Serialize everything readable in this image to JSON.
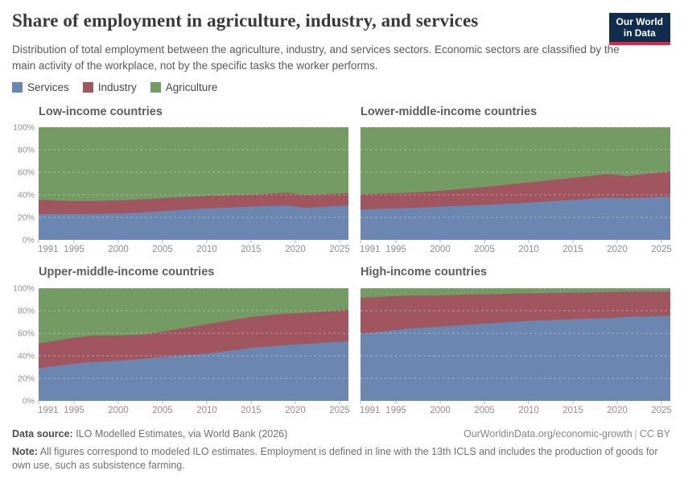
{
  "header": {
    "title": "Share of employment in agriculture, industry, and services",
    "subtitle": "Distribution of total employment between the agriculture, industry, and services sectors. Economic sectors are classified by the main activity of the workplace, not by the specific tasks the worker performs.",
    "logo": {
      "line1": "Our World",
      "line2": "in Data",
      "bg_color": "#102d50",
      "accent_color": "#dc2540"
    }
  },
  "legend": {
    "items": [
      {
        "label": "Services",
        "color": "#6c86b2"
      },
      {
        "label": "Industry",
        "color": "#a0555f"
      },
      {
        "label": "Agriculture",
        "color": "#739b63"
      }
    ]
  },
  "axis": {
    "x_min": 1991,
    "x_max": 2026,
    "x_ticks": [
      1991,
      1995,
      2000,
      2005,
      2010,
      2015,
      2020,
      2025
    ],
    "y_ticks": [
      0,
      20,
      40,
      60,
      80,
      100
    ],
    "y_suffix": "%",
    "grid": "dashed",
    "ylim": [
      0,
      100
    ]
  },
  "chart_data": [
    {
      "type": "area",
      "stacked": true,
      "title": "Low-income countries",
      "show_y_axis": true,
      "ylim": [
        0,
        100
      ],
      "x": [
        1991,
        1995,
        1997,
        2000,
        2003,
        2005,
        2010,
        2015,
        2019,
        2021,
        2026
      ],
      "series": [
        {
          "name": "Services",
          "color": "#6c86b2",
          "values": [
            23,
            23,
            23,
            23.5,
            24.5,
            25.5,
            28,
            29.5,
            30.5,
            28.5,
            30.5
          ]
        },
        {
          "name": "Industry",
          "color": "#a0555f",
          "values": [
            12.5,
            11.5,
            11.5,
            11.5,
            11.5,
            11.5,
            11,
            10.5,
            11.5,
            11.5,
            11
          ]
        },
        {
          "name": "Agriculture",
          "color": "#739b63",
          "values": [
            64.5,
            65.5,
            65.5,
            65,
            64,
            63,
            61,
            60,
            58,
            60,
            58.5
          ]
        }
      ]
    },
    {
      "type": "area",
      "stacked": true,
      "title": "Lower-middle-income countries",
      "show_y_axis": false,
      "ylim": [
        0,
        100
      ],
      "x": [
        1991,
        1995,
        1997,
        2000,
        2003,
        2005,
        2010,
        2015,
        2019,
        2021,
        2026
      ],
      "series": [
        {
          "name": "Services",
          "color": "#6c86b2",
          "values": [
            27,
            28,
            28.5,
            29.5,
            30.5,
            31,
            33,
            35.5,
            37.5,
            37,
            38.5
          ]
        },
        {
          "name": "Industry",
          "color": "#a0555f",
          "values": [
            13.5,
            13.5,
            13.5,
            14,
            15,
            16,
            18,
            19.5,
            21,
            19.5,
            22.5
          ]
        },
        {
          "name": "Agriculture",
          "color": "#739b63",
          "values": [
            59.5,
            58.5,
            58,
            56.5,
            54.5,
            53,
            49,
            45,
            41.5,
            43.5,
            39
          ]
        }
      ]
    },
    {
      "type": "area",
      "stacked": true,
      "title": "Upper-middle-income countries",
      "show_y_axis": true,
      "ylim": [
        0,
        100
      ],
      "x": [
        1991,
        1995,
        1997,
        2000,
        2003,
        2005,
        2010,
        2015,
        2019,
        2021,
        2026
      ],
      "series": [
        {
          "name": "Services",
          "color": "#6c86b2",
          "values": [
            29,
            33,
            34.5,
            35.5,
            37.5,
            39,
            42,
            47,
            49.5,
            50.5,
            53
          ]
        },
        {
          "name": "Industry",
          "color": "#a0555f",
          "values": [
            22,
            23,
            23.5,
            22.5,
            21.5,
            22.5,
            26,
            27.5,
            28,
            27.5,
            28
          ]
        },
        {
          "name": "Agriculture",
          "color": "#739b63",
          "values": [
            49,
            44,
            42,
            42,
            41,
            38.5,
            32,
            25.5,
            22.5,
            22,
            19
          ]
        }
      ]
    },
    {
      "type": "area",
      "stacked": true,
      "title": "High-income countries",
      "show_y_axis": false,
      "ylim": [
        0,
        100
      ],
      "x": [
        1991,
        1995,
        1997,
        2000,
        2003,
        2005,
        2010,
        2015,
        2019,
        2021,
        2026
      ],
      "series": [
        {
          "name": "Services",
          "color": "#6c86b2",
          "values": [
            59.5,
            63,
            64.5,
            66,
            67.5,
            68.5,
            71,
            72.5,
            73.5,
            74.5,
            75.5
          ]
        },
        {
          "name": "Industry",
          "color": "#a0555f",
          "values": [
            32,
            30,
            29,
            27.5,
            27,
            26,
            24.5,
            23.5,
            23,
            22.5,
            21.5
          ]
        },
        {
          "name": "Agriculture",
          "color": "#739b63",
          "values": [
            8.5,
            7,
            6.5,
            6.5,
            5.5,
            5.5,
            4.5,
            4,
            3.5,
            3,
            3
          ]
        }
      ]
    }
  ],
  "footer": {
    "source_label": "Data source:",
    "source_text": " ILO Modelled Estimates, via World Bank (2026)",
    "url": "OurWorldinData.org/economic-growth",
    "separator": "|",
    "license": "CC BY",
    "note_label": "Note:",
    "note_text": " All figures correspond to modeled ILO estimates. Employment is defined in line with the 13th ICLS and includes the production of goods for own use, such as subsistence farming."
  }
}
